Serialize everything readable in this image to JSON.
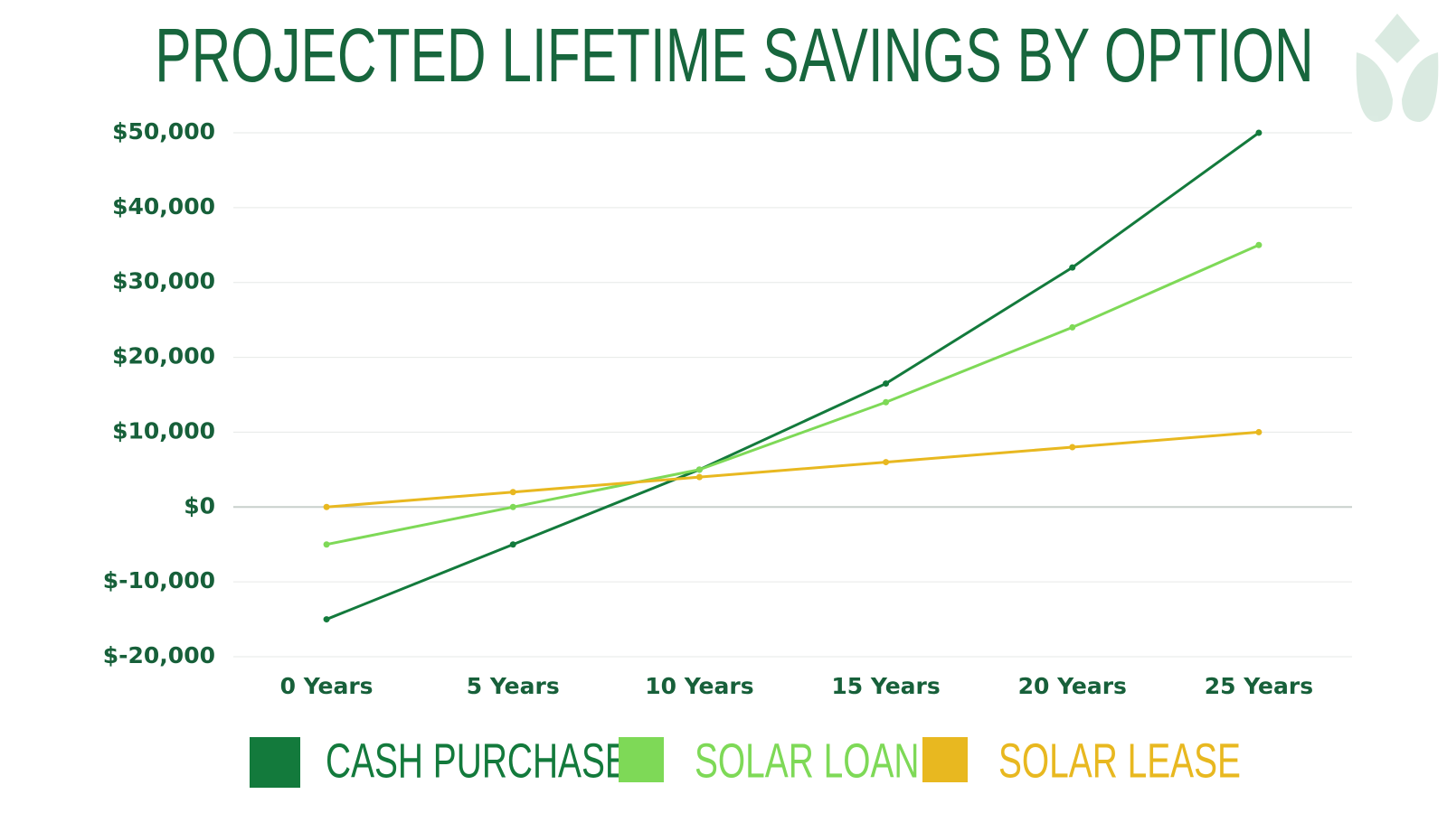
{
  "chart_data": {
    "type": "line",
    "title": "PROJECTED LIFETIME SAVINGS BY OPTION",
    "categories": [
      "0 Years",
      "5 Years",
      "10 Years",
      "15 Years",
      "20 Years",
      "25 Years"
    ],
    "series": [
      {
        "name": "CASH PURCHASE",
        "color": "#137a3c",
        "values": [
          -15000,
          -5000,
          5000,
          16500,
          32000,
          50000
        ]
      },
      {
        "name": "SOLAR LOAN",
        "color": "#7ed957",
        "values": [
          -5000,
          0,
          5000,
          14000,
          24000,
          35000
        ]
      },
      {
        "name": "SOLAR LEASE",
        "color": "#e8b820",
        "values": [
          0,
          2000,
          4000,
          6000,
          8000,
          10000
        ]
      }
    ],
    "ylim": [
      -20000,
      50000
    ],
    "yticks": [
      {
        "value": -20000,
        "label": "$-20,000"
      },
      {
        "value": -10000,
        "label": "$-10,000"
      },
      {
        "value": 0,
        "label": "$0"
      },
      {
        "value": 10000,
        "label": "$10,000"
      },
      {
        "value": 20000,
        "label": "$20,000"
      },
      {
        "value": 30000,
        "label": "$30,000"
      },
      {
        "value": 40000,
        "label": "$40,000"
      },
      {
        "value": 50000,
        "label": "$50,000"
      }
    ],
    "grid": true,
    "legend": "bottom"
  }
}
